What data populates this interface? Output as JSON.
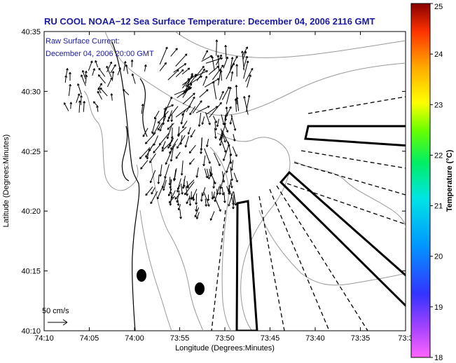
{
  "title": "RU COOL  NOAA−12  Sea Surface Temperature:  December 04, 2006 2116 GMT",
  "legend": {
    "line1": "Raw Surface Current:",
    "line2": "December 04, 2006 20:00 GMT",
    "scale_label": "50 cm/s"
  },
  "axes": {
    "xlabel": "Longitude (Degrees:Minutes)",
    "ylabel": "Latitude (Degrees:Minutes)",
    "x_ticks": [
      "74:10",
      "74:05",
      "74:00",
      "73:55",
      "73:50",
      "73:45",
      "73:40",
      "73:35",
      "73:3"
    ],
    "y_ticks": [
      "40:35",
      "40:30",
      "40:25",
      "40:20",
      "40:15",
      "40:10"
    ]
  },
  "colorbar": {
    "label": "Temperature (°C)",
    "ticks": [
      "25",
      "24",
      "23",
      "22",
      "21",
      "20",
      "19",
      "18"
    ],
    "min": 18,
    "max": 25
  },
  "chart_data": {
    "type": "vector_field",
    "title": "RU COOL  NOAA−12  Sea Surface Temperature:  December 04, 2006 2116 GMT",
    "xlabel": "Longitude (Degrees:Minutes)",
    "ylabel": "Latitude (Degrees:Minutes)",
    "xlim": [
      "74:10",
      "73:30"
    ],
    "ylim": [
      "40:10",
      "40:35"
    ],
    "colorbar_range": [
      18,
      25
    ],
    "colorbar_units": "Temperature (°C)",
    "vector_scale": "50 cm/s"
  }
}
